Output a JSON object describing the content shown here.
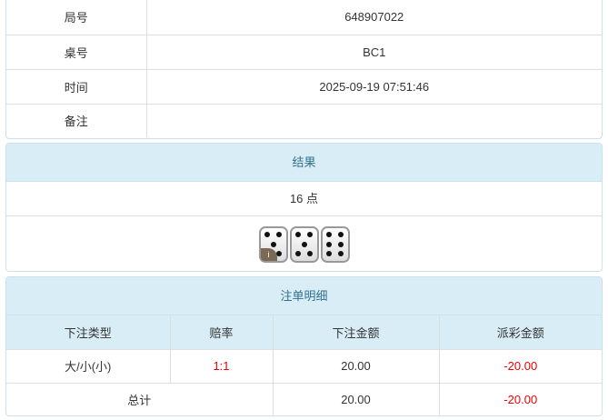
{
  "info": {
    "rows": [
      {
        "label": "局号",
        "value": "648907022"
      },
      {
        "label": "桌号",
        "value": "BC1"
      },
      {
        "label": "时间",
        "value": "2025-09-19 07:51:46"
      },
      {
        "label": "备注",
        "value": ""
      }
    ]
  },
  "result": {
    "title": "结果",
    "points": "16 点",
    "dice": [
      5,
      5,
      6
    ],
    "info_badge": "i"
  },
  "bets": {
    "title": "注单明细",
    "headers": [
      "下注类型",
      "赔率",
      "下注金额",
      "派彩金额"
    ],
    "rows": [
      {
        "type": "大/小(小)",
        "odds": "1:1",
        "amount": "20.00",
        "payout": "-20.00"
      }
    ],
    "total": {
      "label": "总计",
      "amount": "20.00",
      "payout": "-20.00"
    }
  },
  "colors": {
    "header_bg": "#d9edf7",
    "negative": "#ee0000"
  }
}
